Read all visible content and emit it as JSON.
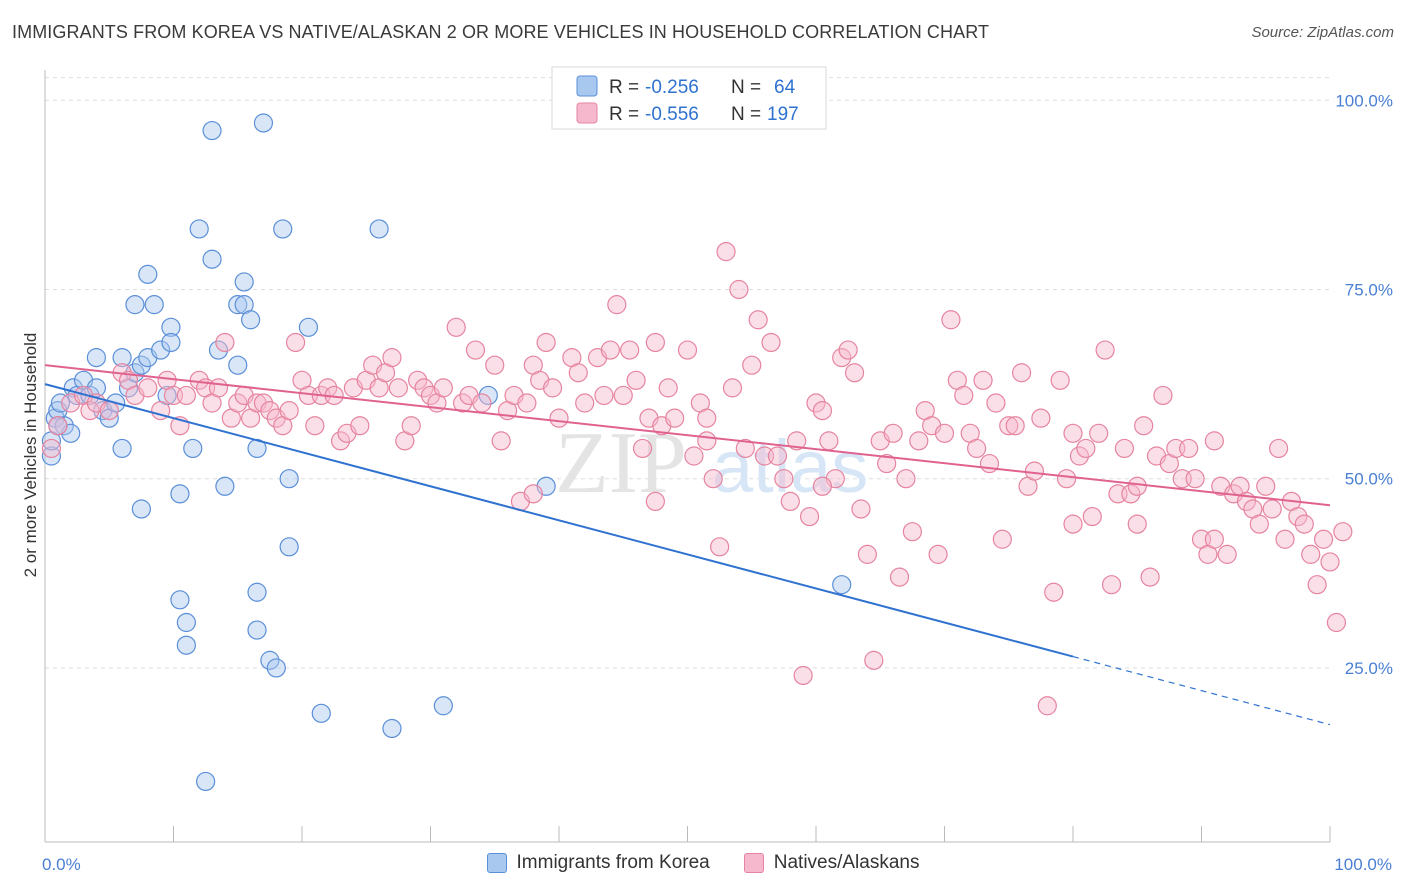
{
  "title": "IMMIGRANTS FROM KOREA VS NATIVE/ALASKAN 2 OR MORE VEHICLES IN HOUSEHOLD CORRELATION CHART",
  "source": "Source: ZipAtlas.com",
  "watermark": {
    "zip": "ZIP",
    "atlas": "atlas"
  },
  "colors": {
    "blue_fill": "#a9c8f0",
    "blue_stroke": "#5b8fd8",
    "blue_line": "#2f72d0",
    "pink_fill": "#f6b8cc",
    "pink_stroke": "#e6849f",
    "pink_line": "#e0628f",
    "tick": "#4a7fd4"
  },
  "legend": {
    "rows": [
      {
        "r_label": "R = ",
        "r_value": "-0.256",
        "n_label": "N = ",
        "n_value": "64"
      },
      {
        "r_label": "R = ",
        "r_value": "-0.556",
        "n_label": "N = ",
        "n_value": "197"
      }
    ]
  },
  "chart_data": {
    "type": "scatter",
    "ylabel": "2 or more Vehicles in Household",
    "xlim": [
      0,
      100
    ],
    "ylim": [
      2,
      104
    ],
    "x_tick_labels": [
      "0.0%",
      "100.0%"
    ],
    "y_ticks": [
      {
        "value": 25,
        "label": "25.0%"
      },
      {
        "value": 50,
        "label": "50.0%"
      },
      {
        "value": 75,
        "label": "75.0%"
      },
      {
        "value": 100,
        "label": "100.0%"
      }
    ],
    "grid": "horizontal dashed",
    "series": [
      {
        "name": "Immigrants from Korea",
        "trend": {
          "x1": 0,
          "y1": 62.5,
          "x2": 80,
          "y2": 26.5,
          "dashed_to_x": 100,
          "dashed_to_y": 17.5
        },
        "points": [
          [
            0.5,
            53
          ],
          [
            0.5,
            55
          ],
          [
            0.8,
            58
          ],
          [
            1.0,
            59
          ],
          [
            1.2,
            60
          ],
          [
            1.5,
            57
          ],
          [
            2.0,
            56
          ],
          [
            2.2,
            62
          ],
          [
            2.5,
            61
          ],
          [
            3.0,
            63
          ],
          [
            3.5,
            61
          ],
          [
            4.0,
            66
          ],
          [
            4.0,
            62
          ],
          [
            4.5,
            59
          ],
          [
            5.0,
            58
          ],
          [
            5.5,
            60
          ],
          [
            6.0,
            54
          ],
          [
            6.0,
            66
          ],
          [
            6.5,
            62
          ],
          [
            7.0,
            64
          ],
          [
            7.5,
            65
          ],
          [
            8.0,
            66
          ],
          [
            7.0,
            73
          ],
          [
            8.0,
            77
          ],
          [
            8.5,
            73
          ],
          [
            9.0,
            67
          ],
          [
            7.5,
            46
          ],
          [
            9.5,
            61
          ],
          [
            9.8,
            70
          ],
          [
            9.8,
            68
          ],
          [
            10.5,
            48
          ],
          [
            10.5,
            34
          ],
          [
            11.0,
            31
          ],
          [
            11.0,
            28
          ],
          [
            11.5,
            54
          ],
          [
            12.0,
            83
          ],
          [
            12.5,
            10
          ],
          [
            13.0,
            79
          ],
          [
            13.0,
            96
          ],
          [
            13.5,
            67
          ],
          [
            14.0,
            49
          ],
          [
            15.0,
            65
          ],
          [
            15.0,
            73
          ],
          [
            15.5,
            73
          ],
          [
            15.5,
            76
          ],
          [
            16.0,
            71
          ],
          [
            16.5,
            54
          ],
          [
            16.5,
            35
          ],
          [
            16.5,
            30
          ],
          [
            17.0,
            97
          ],
          [
            17.5,
            26
          ],
          [
            18.0,
            25
          ],
          [
            18.5,
            83
          ],
          [
            19.0,
            50
          ],
          [
            19.0,
            41
          ],
          [
            20.5,
            70
          ],
          [
            21.5,
            19
          ],
          [
            26.0,
            83
          ],
          [
            27.0,
            17
          ],
          [
            31.0,
            20
          ],
          [
            34.5,
            61
          ],
          [
            39.0,
            49
          ],
          [
            62.0,
            36
          ],
          [
            1.0,
            57
          ]
        ]
      },
      {
        "name": "Natives/Alaskans",
        "trend": {
          "x1": 0,
          "y1": 65,
          "x2": 100,
          "y2": 46.5
        },
        "points": [
          [
            0.5,
            54
          ],
          [
            1.0,
            57
          ],
          [
            2.0,
            60
          ],
          [
            3.0,
            61
          ],
          [
            3.5,
            59
          ],
          [
            4.0,
            60
          ],
          [
            5.0,
            59
          ],
          [
            6.0,
            64
          ],
          [
            6.5,
            63
          ],
          [
            7.0,
            61
          ],
          [
            8.0,
            62
          ],
          [
            9.0,
            59
          ],
          [
            9.5,
            63
          ],
          [
            10.0,
            61
          ],
          [
            10.5,
            57
          ],
          [
            11.0,
            61
          ],
          [
            12.0,
            63
          ],
          [
            12.5,
            62
          ],
          [
            13.0,
            60
          ],
          [
            13.5,
            62
          ],
          [
            14.0,
            68
          ],
          [
            14.5,
            58
          ],
          [
            15.0,
            60
          ],
          [
            15.5,
            61
          ],
          [
            16.0,
            58
          ],
          [
            16.5,
            60
          ],
          [
            17.0,
            60
          ],
          [
            17.5,
            59
          ],
          [
            18.0,
            58
          ],
          [
            18.5,
            57
          ],
          [
            19.0,
            59
          ],
          [
            19.5,
            68
          ],
          [
            20.0,
            63
          ],
          [
            20.5,
            61
          ],
          [
            21.0,
            57
          ],
          [
            21.5,
            61
          ],
          [
            22.0,
            62
          ],
          [
            22.5,
            61
          ],
          [
            23.0,
            55
          ],
          [
            23.5,
            56
          ],
          [
            24.0,
            62
          ],
          [
            24.5,
            57
          ],
          [
            25.0,
            63
          ],
          [
            25.5,
            65
          ],
          [
            26.0,
            62
          ],
          [
            26.5,
            64
          ],
          [
            27.0,
            66
          ],
          [
            27.5,
            62
          ],
          [
            28.0,
            55
          ],
          [
            28.5,
            57
          ],
          [
            29.0,
            63
          ],
          [
            29.5,
            62
          ],
          [
            30.0,
            61
          ],
          [
            30.5,
            60
          ],
          [
            31.0,
            62
          ],
          [
            32.0,
            70
          ],
          [
            32.5,
            60
          ],
          [
            33.0,
            61
          ],
          [
            33.5,
            67
          ],
          [
            34.0,
            60
          ],
          [
            35.0,
            65
          ],
          [
            35.5,
            55
          ],
          [
            36.0,
            59
          ],
          [
            36.5,
            61
          ],
          [
            37.0,
            47
          ],
          [
            37.5,
            60
          ],
          [
            38.0,
            65
          ],
          [
            38.5,
            63
          ],
          [
            39.0,
            68
          ],
          [
            39.5,
            62
          ],
          [
            40.0,
            58
          ],
          [
            41.0,
            66
          ],
          [
            41.5,
            64
          ],
          [
            42.0,
            60
          ],
          [
            43.0,
            66
          ],
          [
            43.5,
            61
          ],
          [
            44.0,
            67
          ],
          [
            44.5,
            73
          ],
          [
            45.0,
            61
          ],
          [
            45.5,
            67
          ],
          [
            46.0,
            63
          ],
          [
            46.5,
            54
          ],
          [
            47.0,
            58
          ],
          [
            47.5,
            68
          ],
          [
            48.0,
            57
          ],
          [
            48.5,
            62
          ],
          [
            49.0,
            58
          ],
          [
            50.0,
            67
          ],
          [
            50.5,
            53
          ],
          [
            51.0,
            60
          ],
          [
            51.5,
            58
          ],
          [
            52.0,
            50
          ],
          [
            52.5,
            41
          ],
          [
            53.0,
            80
          ],
          [
            53.5,
            62
          ],
          [
            54.0,
            75
          ],
          [
            54.5,
            54
          ],
          [
            55.0,
            65
          ],
          [
            55.5,
            71
          ],
          [
            56.0,
            53
          ],
          [
            56.5,
            68
          ],
          [
            57.0,
            53
          ],
          [
            57.5,
            50
          ],
          [
            58.0,
            47
          ],
          [
            58.5,
            55
          ],
          [
            59.0,
            24
          ],
          [
            59.5,
            45
          ],
          [
            60.0,
            60
          ],
          [
            60.5,
            59
          ],
          [
            61.0,
            55
          ],
          [
            61.5,
            50
          ],
          [
            62.0,
            66
          ],
          [
            62.5,
            67
          ],
          [
            63.0,
            64
          ],
          [
            63.5,
            46
          ],
          [
            64.0,
            40
          ],
          [
            64.5,
            26
          ],
          [
            65.0,
            55
          ],
          [
            65.5,
            52
          ],
          [
            66.0,
            56
          ],
          [
            66.5,
            37
          ],
          [
            67.0,
            50
          ],
          [
            67.5,
            43
          ],
          [
            68.0,
            55
          ],
          [
            68.5,
            59
          ],
          [
            69.0,
            57
          ],
          [
            69.5,
            40
          ],
          [
            70.0,
            56
          ],
          [
            70.5,
            71
          ],
          [
            71.0,
            63
          ],
          [
            71.5,
            61
          ],
          [
            72.0,
            56
          ],
          [
            72.5,
            54
          ],
          [
            73.0,
            63
          ],
          [
            73.5,
            52
          ],
          [
            74.0,
            60
          ],
          [
            74.5,
            42
          ],
          [
            75.0,
            57
          ],
          [
            75.5,
            57
          ],
          [
            76.0,
            64
          ],
          [
            76.5,
            49
          ],
          [
            77.0,
            51
          ],
          [
            77.5,
            58
          ],
          [
            78.0,
            20
          ],
          [
            78.5,
            35
          ],
          [
            79.0,
            63
          ],
          [
            79.5,
            50
          ],
          [
            80.0,
            56
          ],
          [
            80.5,
            53
          ],
          [
            81.0,
            54
          ],
          [
            81.5,
            45
          ],
          [
            82.0,
            56
          ],
          [
            82.5,
            67
          ],
          [
            83.0,
            36
          ],
          [
            83.5,
            48
          ],
          [
            84.0,
            54
          ],
          [
            84.5,
            48
          ],
          [
            85.0,
            44
          ],
          [
            85.5,
            57
          ],
          [
            86.0,
            37
          ],
          [
            86.5,
            53
          ],
          [
            87.0,
            61
          ],
          [
            87.5,
            52
          ],
          [
            88.0,
            54
          ],
          [
            88.5,
            50
          ],
          [
            89.0,
            54
          ],
          [
            89.5,
            50
          ],
          [
            90.0,
            42
          ],
          [
            90.5,
            40
          ],
          [
            91.0,
            55
          ],
          [
            91.5,
            49
          ],
          [
            92.0,
            40
          ],
          [
            92.5,
            48
          ],
          [
            93.0,
            49
          ],
          [
            93.5,
            47
          ],
          [
            94.0,
            46
          ],
          [
            94.5,
            44
          ],
          [
            95.0,
            49
          ],
          [
            95.5,
            46
          ],
          [
            96.0,
            54
          ],
          [
            96.5,
            42
          ],
          [
            97.0,
            47
          ],
          [
            97.5,
            45
          ],
          [
            98.0,
            44
          ],
          [
            98.5,
            40
          ],
          [
            99.0,
            36
          ],
          [
            99.5,
            42
          ],
          [
            100.0,
            39
          ],
          [
            100.5,
            31
          ],
          [
            101.0,
            43
          ],
          [
            51.5,
            55
          ],
          [
            47.5,
            47
          ],
          [
            60.5,
            49
          ],
          [
            38.0,
            48
          ],
          [
            85.0,
            49
          ],
          [
            91.0,
            42
          ],
          [
            80.0,
            44
          ]
        ]
      }
    ]
  }
}
